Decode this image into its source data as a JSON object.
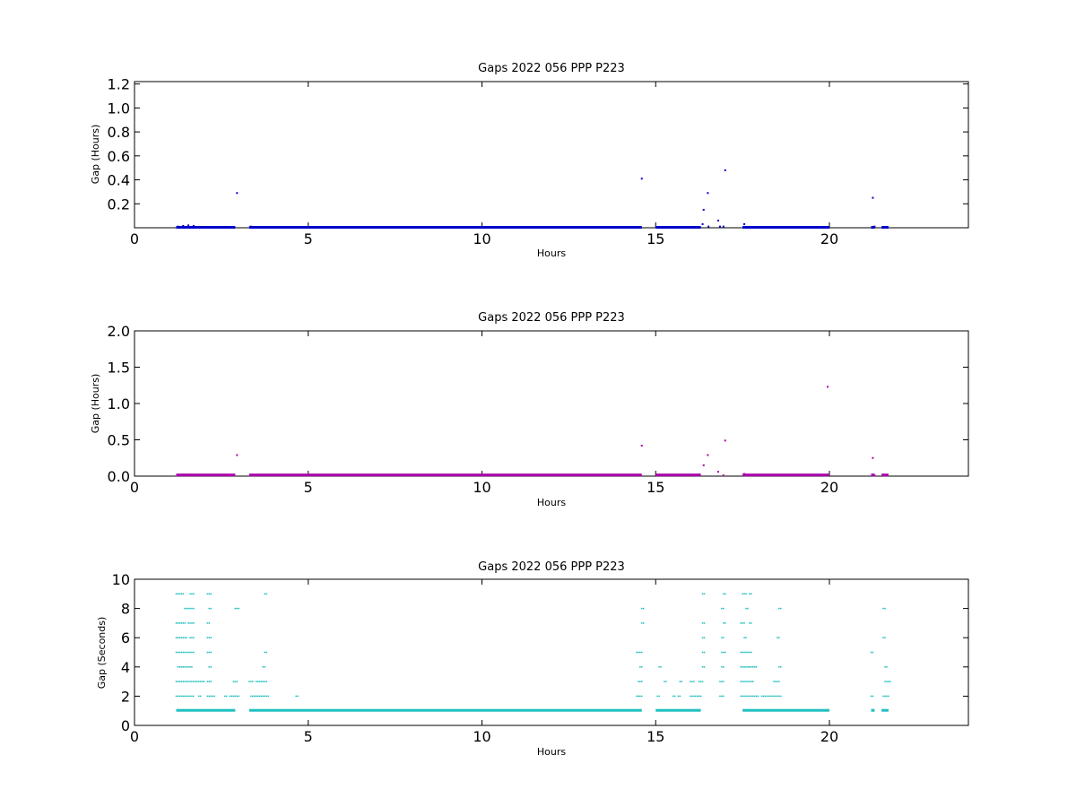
{
  "chart_data": [
    {
      "type": "scatter",
      "title": "Gaps 2022 056 PPP  P223",
      "xlabel": "Hours",
      "ylabel": "Gap (Hours)",
      "xlim": [
        0,
        24
      ],
      "ylim": [
        0,
        1.22
      ],
      "xticks": [
        0,
        5,
        10,
        15,
        20
      ],
      "yticks": [
        0.2,
        0.4,
        0.6,
        0.8,
        1.0,
        1.2
      ],
      "ytick_labels": [
        "0.2",
        "0.4",
        "0.6",
        "0.8",
        "1.0",
        "1.2"
      ],
      "color": "#0000cc",
      "grid": false,
      "bands": [
        [
          1.2,
          2.9,
          0.0
        ],
        [
          3.3,
          14.6,
          0.0
        ],
        [
          15.0,
          16.3,
          0.0
        ],
        [
          17.5,
          20.0,
          0.0
        ],
        [
          21.2,
          21.3,
          0.0
        ],
        [
          21.5,
          21.7,
          0.0
        ]
      ],
      "points": [
        [
          1.25,
          0.01
        ],
        [
          1.4,
          0.015
        ],
        [
          1.55,
          0.02
        ],
        [
          1.7,
          0.015
        ],
        [
          2.95,
          0.29
        ],
        [
          3.35,
          0.01
        ],
        [
          14.6,
          0.41
        ],
        [
          16.35,
          0.03
        ],
        [
          16.38,
          0.15
        ],
        [
          16.5,
          0.29
        ],
        [
          16.52,
          0.01
        ],
        [
          16.8,
          0.06
        ],
        [
          16.85,
          0.01
        ],
        [
          16.95,
          0.01
        ],
        [
          17.0,
          0.48
        ],
        [
          17.55,
          0.03
        ],
        [
          21.25,
          0.25
        ],
        [
          21.3,
          0.01
        ]
      ]
    },
    {
      "type": "scatter",
      "title": "Gaps 2022 056 PPP  P223",
      "xlabel": "Hours",
      "ylabel": "Gap (Hours)",
      "xlim": [
        0,
        24
      ],
      "ylim": [
        0,
        2.0
      ],
      "xticks": [
        0,
        5,
        10,
        15,
        20
      ],
      "yticks": [
        0.0,
        0.5,
        1.0,
        1.5,
        2.0
      ],
      "ytick_labels": [
        "0.0",
        "0.5",
        "1.0",
        "1.5",
        "2.0"
      ],
      "color": "#aa00aa",
      "grid": false,
      "bands": [
        [
          1.2,
          2.9,
          0.01
        ],
        [
          3.3,
          14.6,
          0.01
        ],
        [
          15.0,
          16.3,
          0.01
        ],
        [
          17.5,
          20.0,
          0.01
        ],
        [
          21.2,
          21.3,
          0.01
        ],
        [
          21.5,
          21.7,
          0.01
        ]
      ],
      "points": [
        [
          1.4,
          0.02
        ],
        [
          1.55,
          0.02
        ],
        [
          2.95,
          0.29
        ],
        [
          14.6,
          0.42
        ],
        [
          16.38,
          0.15
        ],
        [
          16.5,
          0.29
        ],
        [
          16.8,
          0.06
        ],
        [
          16.95,
          0.01
        ],
        [
          17.0,
          0.49
        ],
        [
          17.55,
          0.03
        ],
        [
          19.95,
          1.23
        ],
        [
          21.25,
          0.25
        ],
        [
          21.3,
          0.01
        ]
      ]
    },
    {
      "type": "scatter",
      "title": "Gaps 2022 056 PPP  P223",
      "xlabel": "Hours",
      "ylabel": "Gap (Seconds)",
      "xlim": [
        0,
        24
      ],
      "ylim": [
        0,
        10
      ],
      "xticks": [
        0,
        5,
        10,
        15,
        20
      ],
      "yticks": [
        0,
        2,
        4,
        6,
        8,
        10
      ],
      "ytick_labels": [
        "0",
        "2",
        "4",
        "6",
        "8",
        "10"
      ],
      "color": "#1fbfbf",
      "grid": false,
      "bands": [
        [
          1.2,
          2.9,
          1
        ],
        [
          3.3,
          14.6,
          1
        ],
        [
          15.0,
          16.3,
          1
        ],
        [
          17.5,
          20.0,
          1
        ],
        [
          21.2,
          21.3,
          1
        ],
        [
          21.5,
          21.7,
          1
        ]
      ],
      "rows": [
        {
          "y": 9,
          "segments": [
            [
              1.2,
              1.3
            ],
            [
              1.35,
              1.4
            ],
            [
              1.6,
              1.7
            ],
            [
              2.1,
              2.2
            ],
            [
              3.75,
              3.8
            ],
            [
              16.35,
              16.4
            ],
            [
              16.95,
              17.0
            ],
            [
              17.5,
              17.6
            ],
            [
              17.7,
              17.75
            ]
          ]
        },
        {
          "y": 8,
          "segments": [
            [
              1.45,
              1.5
            ],
            [
              1.55,
              1.7
            ],
            [
              2.15,
              2.2
            ],
            [
              2.9,
              3.0
            ],
            [
              14.6,
              14.65
            ],
            [
              16.9,
              16.95
            ],
            [
              17.6,
              17.65
            ],
            [
              18.55,
              18.6
            ],
            [
              21.55,
              21.6
            ]
          ]
        },
        {
          "y": 7,
          "segments": [
            [
              1.2,
              1.25
            ],
            [
              1.3,
              1.45
            ],
            [
              1.55,
              1.7
            ],
            [
              2.1,
              2.15
            ],
            [
              14.6,
              14.65
            ],
            [
              16.35,
              16.4
            ],
            [
              16.95,
              17.0
            ],
            [
              17.45,
              17.55
            ],
            [
              17.7,
              17.75
            ]
          ]
        },
        {
          "y": 6,
          "segments": [
            [
              1.2,
              1.5
            ],
            [
              1.6,
              1.7
            ],
            [
              2.1,
              2.2
            ],
            [
              16.35,
              16.4
            ],
            [
              16.9,
              16.95
            ],
            [
              17.55,
              17.6
            ],
            [
              18.5,
              18.55
            ],
            [
              21.55,
              21.6
            ]
          ]
        },
        {
          "y": 5,
          "segments": [
            [
              1.2,
              1.5
            ],
            [
              1.55,
              1.7
            ],
            [
              2.1,
              2.2
            ],
            [
              3.75,
              3.8
            ],
            [
              14.45,
              14.6
            ],
            [
              16.35,
              16.4
            ],
            [
              16.9,
              17.0
            ],
            [
              17.45,
              17.6
            ],
            [
              17.65,
              17.75
            ],
            [
              21.2,
              21.25
            ]
          ]
        },
        {
          "y": 4,
          "segments": [
            [
              1.25,
              1.65
            ],
            [
              2.15,
              2.2
            ],
            [
              3.7,
              3.75
            ],
            [
              14.55,
              14.6
            ],
            [
              15.1,
              15.15
            ],
            [
              16.35,
              16.4
            ],
            [
              16.9,
              16.95
            ],
            [
              17.45,
              17.7
            ],
            [
              17.7,
              17.8
            ],
            [
              17.85,
              17.9
            ],
            [
              18.55,
              18.6
            ],
            [
              21.6,
              21.65
            ]
          ]
        },
        {
          "y": 3,
          "segments": [
            [
              1.2,
              1.7
            ],
            [
              1.75,
              2.0
            ],
            [
              2.1,
              2.2
            ],
            [
              2.85,
              2.95
            ],
            [
              3.3,
              3.4
            ],
            [
              3.5,
              3.8
            ],
            [
              14.5,
              14.6
            ],
            [
              15.25,
              15.3
            ],
            [
              15.7,
              15.75
            ],
            [
              16.0,
              16.1
            ],
            [
              16.25,
              16.35
            ],
            [
              16.85,
              16.95
            ],
            [
              17.45,
              17.8
            ],
            [
              18.4,
              18.55
            ],
            [
              21.6,
              21.65
            ],
            [
              21.7,
              21.75
            ]
          ]
        },
        {
          "y": 2,
          "segments": [
            [
              1.2,
              1.7
            ],
            [
              1.85,
              1.9
            ],
            [
              2.1,
              2.3
            ],
            [
              2.6,
              2.65
            ],
            [
              2.75,
              2.85
            ],
            [
              2.9,
              3.0
            ],
            [
              3.35,
              3.85
            ],
            [
              4.65,
              4.7
            ],
            [
              14.45,
              14.6
            ],
            [
              15.05,
              15.1
            ],
            [
              15.5,
              15.55
            ],
            [
              15.65,
              15.7
            ],
            [
              16.0,
              16.3
            ],
            [
              16.85,
              16.95
            ],
            [
              17.45,
              17.95
            ],
            [
              18.05,
              18.6
            ],
            [
              21.2,
              21.25
            ],
            [
              21.55,
              21.7
            ]
          ]
        }
      ]
    }
  ]
}
